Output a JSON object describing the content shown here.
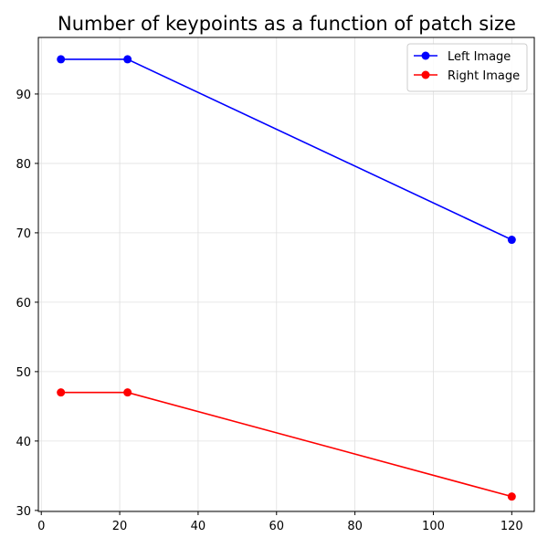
{
  "chart_data": {
    "type": "line",
    "title": "Number of keypoints as a function of patch size",
    "xlabel": "",
    "ylabel": "",
    "x": [
      5,
      22,
      120
    ],
    "series": [
      {
        "name": "Left Image",
        "values": [
          95,
          95,
          69
        ],
        "color": "#0000ff"
      },
      {
        "name": "Right Image",
        "values": [
          47,
          47,
          32
        ],
        "color": "#ff0000"
      }
    ],
    "xlim": [
      -0.75,
      125.75
    ],
    "ylim": [
      29.85,
      98.15
    ],
    "xticks": [
      0,
      20,
      40,
      60,
      80,
      100,
      120
    ],
    "yticks": [
      30,
      40,
      50,
      60,
      70,
      80,
      90
    ],
    "grid": true,
    "legend_position": "top-right"
  }
}
